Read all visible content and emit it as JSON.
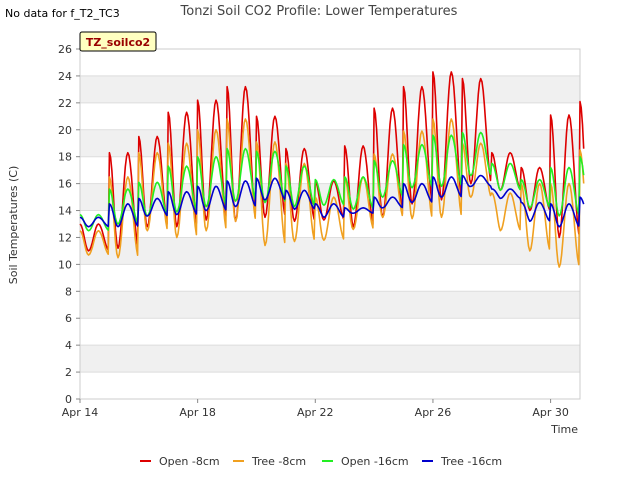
{
  "no_data_note": "No data for f_T2_TC3",
  "chart_data": {
    "type": "line",
    "title": "Tonzi Soil CO2 Profile: Lower Temperatures",
    "xlabel": "Time",
    "ylabel": "Soil Temperatures (C)",
    "station_label": "TZ_soilco2",
    "xlim": [
      "2014-04-14",
      "2014-05-01"
    ],
    "x_ticks": [
      {
        "date": "2014-04-14",
        "label": "Apr 14"
      },
      {
        "date": "2014-04-18",
        "label": "Apr 18"
      },
      {
        "date": "2014-04-22",
        "label": "Apr 22"
      },
      {
        "date": "2014-04-26",
        "label": "Apr 26"
      },
      {
        "date": "2014-04-30",
        "label": "Apr 30"
      }
    ],
    "ylim": [
      0,
      26
    ],
    "y_ticks": [
      0,
      2,
      4,
      6,
      8,
      10,
      12,
      14,
      16,
      18,
      20,
      22,
      24,
      26
    ],
    "grid": true,
    "legend_position": "bottom",
    "day_dates": [
      "2014-04-14",
      "2014-04-15",
      "2014-04-16",
      "2014-04-17",
      "2014-04-18",
      "2014-04-19",
      "2014-04-20",
      "2014-04-21",
      "2014-04-22",
      "2014-04-23",
      "2014-04-24",
      "2014-04-25",
      "2014-04-26",
      "2014-04-27",
      "2014-04-28",
      "2014-04-29",
      "2014-04-30",
      "2014-05-01"
    ],
    "series": [
      {
        "name": "Open -8cm",
        "color": "#dd0000",
        "daily_min": [
          11.0,
          11.2,
          12.8,
          12.8,
          13.3,
          13.2,
          13.5,
          13.2,
          13.3,
          12.8,
          13.5,
          14.5,
          14.8,
          16.0,
          15.5,
          14.0,
          12.0,
          13.5
        ],
        "daily_max": [
          13.0,
          18.3,
          19.5,
          21.3,
          22.2,
          23.2,
          21.0,
          18.6,
          16.2,
          18.8,
          21.6,
          23.2,
          24.3,
          23.8,
          18.3,
          17.2,
          21.1,
          22.1
        ]
      },
      {
        "name": "Tree -8cm",
        "color": "#f0a020",
        "daily_min": [
          10.7,
          10.5,
          12.5,
          12.0,
          12.5,
          13.2,
          11.4,
          11.7,
          11.8,
          12.6,
          13.5,
          13.4,
          13.5,
          15.0,
          12.5,
          11.0,
          9.8,
          13.0
        ],
        "daily_max": [
          12.5,
          16.5,
          18.3,
          19.0,
          20.0,
          20.8,
          19.1,
          17.5,
          15.0,
          16.5,
          18.2,
          19.9,
          20.8,
          19.0,
          15.3,
          16.0,
          16.0,
          18.5
        ]
      },
      {
        "name": "Open -16cm",
        "color": "#22ee22",
        "daily_min": [
          12.5,
          13.0,
          13.6,
          13.9,
          14.3,
          14.7,
          14.6,
          14.3,
          14.4,
          14.1,
          15.0,
          15.7,
          15.8,
          16.6,
          15.5,
          14.2,
          13.6,
          14.8
        ],
        "daily_max": [
          13.7,
          15.6,
          16.1,
          17.3,
          18.0,
          18.6,
          18.4,
          17.3,
          16.3,
          16.5,
          17.7,
          18.9,
          19.6,
          19.8,
          17.5,
          16.3,
          17.2,
          18.0
        ]
      },
      {
        "name": "Tree -16cm",
        "color": "#0000cc",
        "daily_min": [
          12.8,
          12.8,
          13.6,
          13.7,
          14.0,
          14.3,
          14.8,
          14.1,
          13.5,
          13.8,
          14.2,
          14.6,
          15.0,
          15.8,
          14.9,
          13.2,
          12.8,
          14.0
        ],
        "daily_max": [
          13.5,
          14.5,
          14.9,
          15.4,
          15.8,
          16.2,
          16.4,
          15.5,
          14.5,
          14.2,
          15.0,
          16.0,
          16.5,
          16.6,
          15.6,
          14.6,
          14.5,
          15.0
        ]
      }
    ]
  }
}
